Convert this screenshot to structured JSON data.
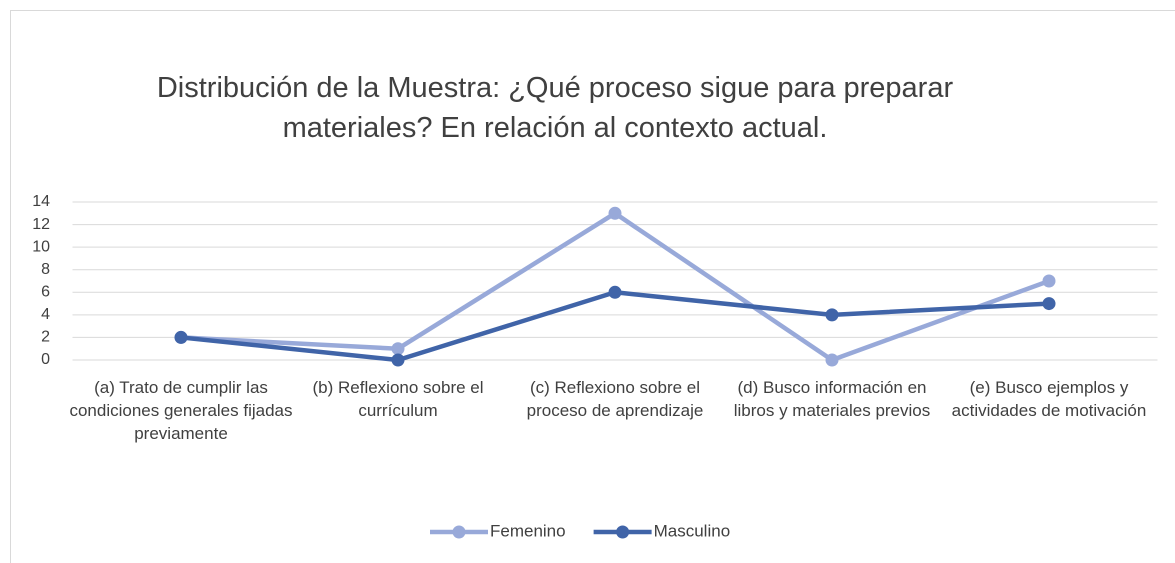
{
  "chart_data": {
    "type": "line",
    "title": "Distribución de la Muestra: ¿Qué proceso sigue para preparar materiales? En relación al contexto actual.",
    "categories": [
      "(a) Trato de cumplir las condiciones generales fijadas previamente",
      "(b) Reflexiono sobre el currículum",
      "(c) Reflexiono sobre el proceso de aprendizaje",
      "(d) Busco información en libros y materiales previos",
      "(e) Busco ejemplos y actividades de motivación"
    ],
    "series": [
      {
        "name": "Femenino",
        "color": "#98a9d9",
        "values": [
          2,
          1,
          13,
          0,
          7
        ]
      },
      {
        "name": "Masculino",
        "color": "#4064a8",
        "values": [
          2,
          0,
          6,
          4,
          5
        ]
      }
    ],
    "ylim": [
      0,
      14
    ],
    "yticks": [
      0,
      2,
      4,
      6,
      8,
      10,
      12,
      14
    ],
    "grid": true,
    "legend": "bottom"
  }
}
